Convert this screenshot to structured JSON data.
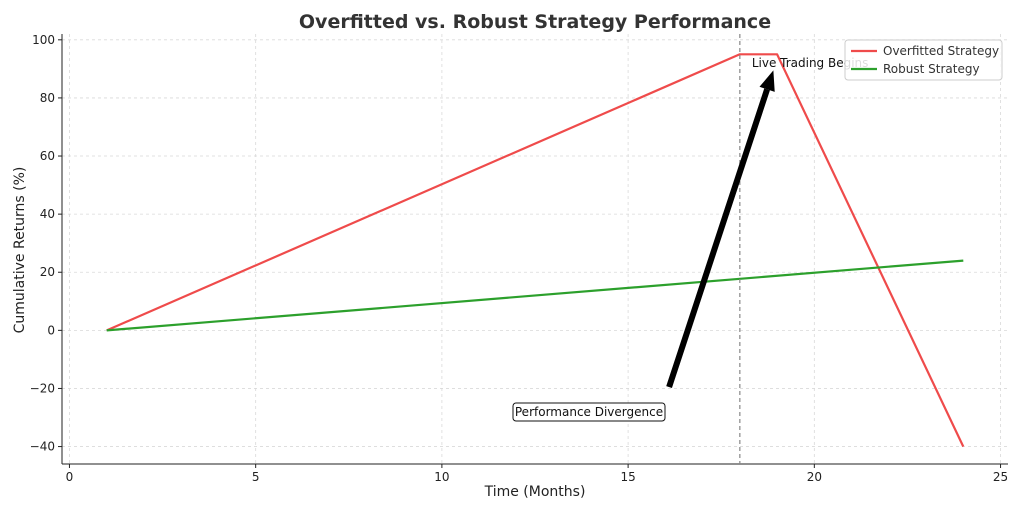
{
  "chart_data": {
    "type": "line",
    "title": "Overfitted vs. Robust Strategy Performance",
    "xlabel": "Time (Months)",
    "ylabel": "Cumulative Returns (%)",
    "xlim": [
      -0.2,
      25.2
    ],
    "ylim": [
      -46,
      102
    ],
    "xticks": [
      0,
      5,
      10,
      15,
      20,
      25
    ],
    "yticks": [
      -40,
      -20,
      0,
      20,
      40,
      60,
      80,
      100
    ],
    "xtick_labels": [
      "0",
      "5",
      "10",
      "15",
      "20",
      "25"
    ],
    "ytick_labels": [
      "−40",
      "−20",
      "0",
      "20",
      "40",
      "60",
      "80",
      "100"
    ],
    "grid": true,
    "legend_position": "top-right",
    "series": [
      {
        "name": "Overfitted Strategy",
        "color": "#ef4b4b",
        "x": [
          1,
          18,
          19,
          24
        ],
        "y": [
          0,
          95,
          95,
          -40
        ]
      },
      {
        "name": "Robust Strategy",
        "color": "#2ca02c",
        "x": [
          1,
          24
        ],
        "y": [
          0,
          24
        ]
      }
    ],
    "annotations": [
      {
        "text": "Live Trading Begins",
        "x": 18,
        "type": "vline"
      },
      {
        "text": "Performance Divergence",
        "x": 16.1,
        "y": -19.5,
        "arrow_to": [
          18.9,
          89.5
        ]
      }
    ]
  }
}
